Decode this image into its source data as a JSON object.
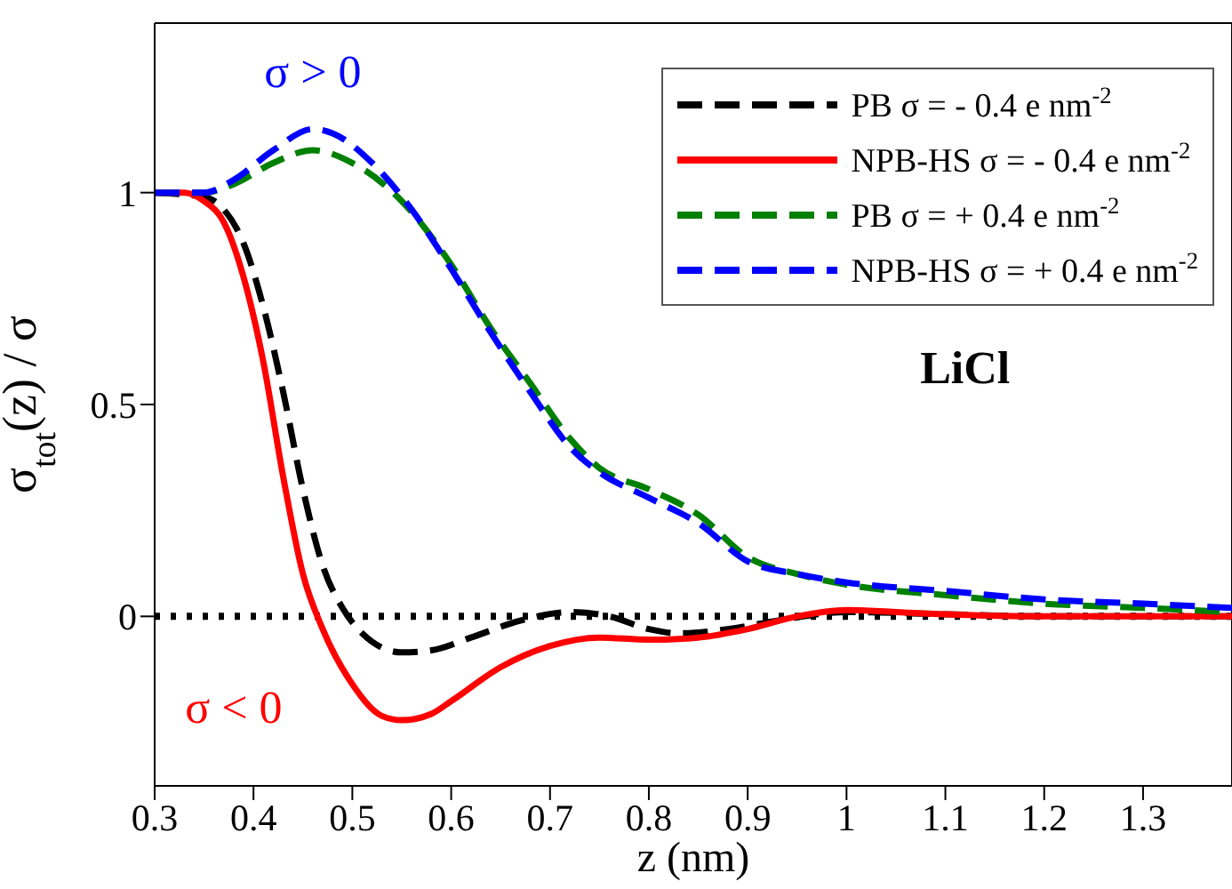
{
  "chart_data": {
    "type": "line",
    "xlabel": "z (nm)",
    "ylabel": "σ$_{tot}$(z) / σ",
    "xlim": [
      0.3,
      1.39
    ],
    "xticks": [
      0.3,
      0.4,
      0.5,
      0.6,
      0.7,
      0.8,
      0.9,
      1,
      1.1,
      1.2,
      1.3
    ],
    "ylim": [
      -0.4,
      1.4
    ],
    "yticks": [
      0,
      0.5,
      1
    ],
    "legend": "top right",
    "marker": "none",
    "ref_lines": [
      {
        "axis": "y",
        "value": 0,
        "color": "#000000",
        "line_style": "dotted"
      }
    ],
    "annotations": [
      "σ > 0",
      "σ < 0",
      "LiCl"
    ],
    "series": [
      {
        "name": "PB σ = - 0.4 e nm$^{-2}$",
        "color": "#000000",
        "line_style": "dashed",
        "x": [
          0.3,
          0.35,
          0.37,
          0.39,
          0.41,
          0.43,
          0.45,
          0.47,
          0.49,
          0.51,
          0.55,
          0.58,
          0.62,
          0.67,
          0.72,
          0.76,
          0.8,
          0.83,
          0.88,
          0.93,
          1.0,
          1.1,
          1.2,
          1.39
        ],
        "values": [
          1,
          0.99,
          0.96,
          0.88,
          0.73,
          0.53,
          0.3,
          0.12,
          0.02,
          -0.04,
          -0.085,
          -0.08,
          -0.05,
          -0.01,
          0.01,
          0,
          -0.03,
          -0.04,
          -0.03,
          -0.01,
          0.01,
          0.005,
          0,
          0
        ]
      },
      {
        "name": "NPB-HS σ = - 0.4 e nm$^{-2}$",
        "color": "#ff0000",
        "line_style": "solid",
        "x": [
          0.3,
          0.33,
          0.35,
          0.37,
          0.39,
          0.41,
          0.43,
          0.45,
          0.47,
          0.5,
          0.53,
          0.55,
          0.58,
          0.6,
          0.65,
          0.7,
          0.75,
          0.8,
          0.85,
          0.9,
          0.95,
          1.0,
          1.05,
          1.1,
          1.2,
          1.39
        ],
        "values": [
          1,
          1,
          0.98,
          0.93,
          0.8,
          0.6,
          0.33,
          0.1,
          -0.03,
          -0.16,
          -0.235,
          -0.245,
          -0.23,
          -0.2,
          -0.12,
          -0.07,
          -0.05,
          -0.055,
          -0.05,
          -0.03,
          0,
          0.015,
          0.01,
          0.005,
          0,
          0
        ]
      },
      {
        "name": "PB σ = + 0.4 e nm$^{-2}$",
        "color": "#008000",
        "line_style": "dashed",
        "x": [
          0.3,
          0.35,
          0.38,
          0.42,
          0.46,
          0.5,
          0.55,
          0.6,
          0.64,
          0.68,
          0.72,
          0.75,
          0.8,
          0.85,
          0.9,
          0.95,
          1.0,
          1.1,
          1.2,
          1.3,
          1.39
        ],
        "values": [
          1,
          1,
          1.02,
          1.07,
          1.1,
          1.07,
          0.98,
          0.83,
          0.68,
          0.55,
          0.42,
          0.35,
          0.3,
          0.24,
          0.14,
          0.1,
          0.075,
          0.05,
          0.03,
          0.02,
          0.01
        ]
      },
      {
        "name": "NPB-HS σ = + 0.4 e nm$^{-2}$",
        "color": "#0000ff",
        "line_style": "dashed",
        "x": [
          0.3,
          0.35,
          0.38,
          0.42,
          0.46,
          0.48,
          0.52,
          0.56,
          0.6,
          0.64,
          0.68,
          0.72,
          0.75,
          0.8,
          0.85,
          0.9,
          0.95,
          1.0,
          1.1,
          1.2,
          1.3,
          1.39
        ],
        "values": [
          1,
          1,
          1.03,
          1.1,
          1.15,
          1.14,
          1.07,
          0.96,
          0.82,
          0.67,
          0.53,
          0.4,
          0.34,
          0.28,
          0.22,
          0.13,
          0.1,
          0.08,
          0.06,
          0.04,
          0.03,
          0.02
        ]
      }
    ]
  }
}
